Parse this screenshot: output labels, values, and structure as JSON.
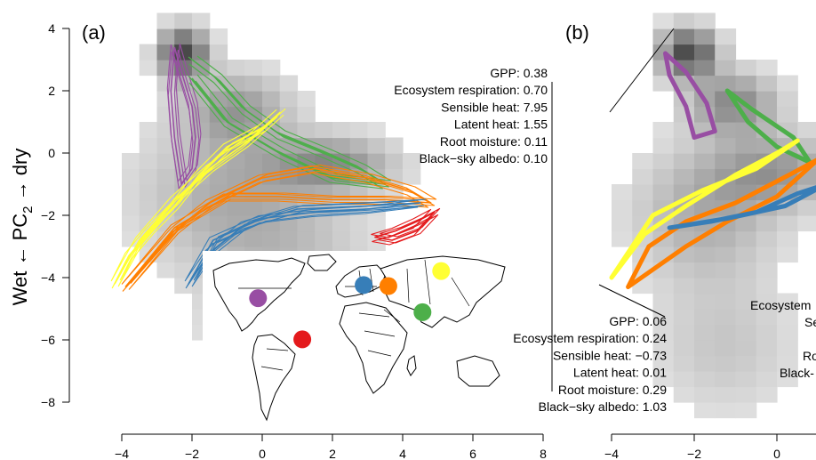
{
  "panels": {
    "a": {
      "label": "(a)"
    },
    "b": {
      "label": "(b)"
    }
  },
  "ylabel": {
    "pre": "Wet ← PC",
    "sub": "2",
    "post": " → dry"
  },
  "annotations": {
    "top": [
      "GPP: 0.38",
      "Ecosystem respiration: 0.70",
      "Sensible heat: 7.95",
      "Latent heat: 1.55",
      "Root moisture: 0.11",
      "Black−sky albedo: 0.10"
    ],
    "bottom": [
      "GPP: 0.06",
      "Ecosystem respiration: 0.24",
      "Sensible heat: −0.73",
      "Latent heat: 0.01",
      "Root moisture: 0.29",
      "Black−sky albedo: 1.03"
    ],
    "right_partial": [
      "Ecosystem",
      "Se",
      "Ro",
      "Black-"
    ]
  },
  "chart_data": [
    {
      "panel": "(a)",
      "type": "line",
      "xlim": [
        -4.5,
        8
      ],
      "ylim": [
        -8.5,
        4.3
      ],
      "xticks": [
        -4,
        -2,
        0,
        2,
        4,
        6,
        8
      ],
      "yticks": [
        4,
        2,
        0,
        -2,
        -4,
        -6,
        -8
      ],
      "background": "density heatmap (grey shades)",
      "series": [
        {
          "color": "#984ea3",
          "points": [
            [
              -2.5,
              3.4
            ],
            [
              -2.3,
              2.6
            ],
            [
              -2.0,
              1.5
            ],
            [
              -1.9,
              0.5
            ],
            [
              -2.0,
              -0.5
            ],
            [
              -2.3,
              -1.0
            ],
            [
              -2.5,
              0.5
            ],
            [
              -2.6,
              2.0
            ],
            [
              -2.5,
              3.4
            ]
          ]
        },
        {
          "color": "#4daf4a",
          "points": [
            [
              -2.0,
              3.0
            ],
            [
              -1.3,
              2.4
            ],
            [
              -0.5,
              1.4
            ],
            [
              0.5,
              0.6
            ],
            [
              1.8,
              0.0
            ],
            [
              2.8,
              -0.5
            ],
            [
              3.5,
              -1.0
            ],
            [
              2.0,
              -0.8
            ],
            [
              0.5,
              0.0
            ],
            [
              -1.0,
              1.0
            ],
            [
              -2.0,
              2.4
            ]
          ]
        },
        {
          "color": "#ffff33",
          "points": [
            [
              -4.2,
              -4.2
            ],
            [
              -3.8,
              -3.3
            ],
            [
              -3.2,
              -2.5
            ],
            [
              -2.5,
              -1.7
            ],
            [
              -1.8,
              -0.7
            ],
            [
              -1.0,
              0.2
            ],
            [
              0.0,
              0.8
            ],
            [
              0.5,
              1.3
            ],
            [
              -0.5,
              0.3
            ],
            [
              -1.5,
              -0.5
            ],
            [
              -2.5,
              -1.5
            ],
            [
              -3.5,
              -2.8
            ],
            [
              -4.2,
              -4.2
            ]
          ]
        },
        {
          "color": "#ff7f00",
          "points": [
            [
              -3.9,
              -4.3
            ],
            [
              -3.2,
              -3.4
            ],
            [
              -2.5,
              -2.5
            ],
            [
              -1.5,
              -1.6
            ],
            [
              0.0,
              -0.8
            ],
            [
              1.5,
              -0.5
            ],
            [
              3.0,
              -0.8
            ],
            [
              4.2,
              -1.2
            ],
            [
              4.8,
              -1.6
            ],
            [
              3.5,
              -1.5
            ],
            [
              2.0,
              -1.5
            ],
            [
              0.5,
              -1.4
            ],
            [
              -1.0,
              -1.4
            ],
            [
              -2.5,
              -2.4
            ],
            [
              -3.9,
              -4.3
            ]
          ]
        },
        {
          "color": "#377eb8",
          "points": [
            [
              -2.1,
              -4.2
            ],
            [
              -1.4,
              -2.8
            ],
            [
              0.0,
              -2.1
            ],
            [
              1.5,
              -1.9
            ],
            [
              3.0,
              -1.8
            ],
            [
              4.5,
              -1.6
            ],
            [
              3.0,
              -1.7
            ],
            [
              1.0,
              -1.8
            ],
            [
              -0.5,
              -2.3
            ],
            [
              -1.5,
              -3.2
            ],
            [
              -2.1,
              -4.2
            ]
          ]
        },
        {
          "color": "#e41a1c",
          "points": [
            [
              3.2,
              -2.7
            ],
            [
              3.8,
              -2.5
            ],
            [
              4.4,
              -2.2
            ],
            [
              4.9,
              -1.9
            ],
            [
              4.4,
              -2.5
            ],
            [
              3.7,
              -2.8
            ],
            [
              3.2,
              -2.7
            ]
          ]
        }
      ]
    },
    {
      "panel": "(b)",
      "type": "line",
      "xlim": [
        -4.5,
        1.3
      ],
      "ylim": [
        -8.5,
        4.3
      ],
      "xticks": [
        -4,
        -2,
        0
      ],
      "background": "density heatmap (grey shades)",
      "series": [
        {
          "color": "#984ea3",
          "points": [
            [
              -2.7,
              3.2
            ],
            [
              -2.2,
              2.6
            ],
            [
              -1.7,
              1.6
            ],
            [
              -1.5,
              0.7
            ],
            [
              -2.0,
              0.5
            ],
            [
              -2.2,
              1.5
            ],
            [
              -2.6,
              2.5
            ],
            [
              -2.7,
              3.2
            ]
          ]
        },
        {
          "color": "#4daf4a",
          "points": [
            [
              -1.2,
              2.0
            ],
            [
              -0.7,
              1.0
            ],
            [
              0.0,
              0.2
            ],
            [
              0.8,
              -0.3
            ],
            [
              0.4,
              0.5
            ],
            [
              -0.6,
              1.4
            ],
            [
              -1.2,
              2.0
            ]
          ]
        },
        {
          "color": "#ffff33",
          "points": [
            [
              -4.0,
              -4.0
            ],
            [
              -3.2,
              -2.6
            ],
            [
              -2.2,
              -1.7
            ],
            [
              -1.0,
              -0.7
            ],
            [
              0.0,
              0.0
            ],
            [
              0.5,
              0.4
            ],
            [
              -0.5,
              -0.5
            ],
            [
              -1.8,
              -1.2
            ],
            [
              -3.0,
              -2.0
            ],
            [
              -4.0,
              -4.0
            ]
          ]
        },
        {
          "color": "#ff7f00",
          "points": [
            [
              -3.6,
              -4.3
            ],
            [
              -3.1,
              -3.0
            ],
            [
              -2.2,
              -2.2
            ],
            [
              -1.0,
              -1.6
            ],
            [
              0.3,
              -0.7
            ],
            [
              1.0,
              -0.2
            ],
            [
              0.0,
              -1.4
            ],
            [
              -1.2,
              -2.2
            ],
            [
              -2.2,
              -3.0
            ],
            [
              -3.6,
              -4.3
            ]
          ]
        },
        {
          "color": "#377eb8",
          "points": [
            [
              -2.6,
              -2.4
            ],
            [
              -1.6,
              -2.2
            ],
            [
              -0.5,
              -1.9
            ],
            [
              0.5,
              -1.3
            ],
            [
              1.2,
              -1.0
            ],
            [
              0.2,
              -1.7
            ],
            [
              -1.2,
              -2.1
            ],
            [
              -2.6,
              -2.4
            ]
          ]
        }
      ]
    }
  ],
  "map": {
    "dots": [
      {
        "color": "#ffff33",
        "lon": 100,
        "lat": 62
      },
      {
        "color": "#377eb8",
        "lon": 9,
        "lat": 48
      },
      {
        "color": "#ff7f00",
        "lon": 38,
        "lat": 47
      },
      {
        "color": "#984ea3",
        "lon": -115,
        "lat": 35
      },
      {
        "color": "#4daf4a",
        "lon": 78,
        "lat": 21
      },
      {
        "color": "#e41a1c",
        "lon": -63,
        "lat": -6
      }
    ]
  }
}
